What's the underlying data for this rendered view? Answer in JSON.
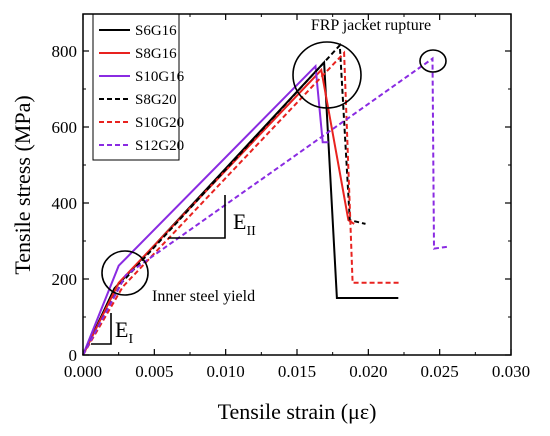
{
  "chart_data": {
    "type": "line",
    "xlabel": "Tensile strain (με)",
    "ylabel": "Tensile stress (MPa)",
    "xlim": [
      0,
      0.03
    ],
    "ylim": [
      0,
      850
    ],
    "xticks": [
      "0.000",
      "0.005",
      "0.010",
      "0.015",
      "0.020",
      "0.025",
      "0.030"
    ],
    "yticks": [
      "0",
      "200",
      "400",
      "600",
      "800"
    ],
    "legend_position": "top-left",
    "series": [
      {
        "name": "S6G16",
        "color": "#000000",
        "dash": "solid",
        "x": [
          0,
          0.0022,
          0.0169,
          0.0178,
          0.0179,
          0.0221
        ],
        "y": [
          0,
          175,
          770,
          150,
          150,
          150
        ]
      },
      {
        "name": "S8G16",
        "color": "#e8221f",
        "dash": "solid",
        "x": [
          0,
          0.0025,
          0.0167,
          0.0186,
          0.019
        ],
        "y": [
          0,
          190,
          750,
          355,
          345
        ]
      },
      {
        "name": "S10G16",
        "color": "#8a2be2",
        "dash": "solid",
        "x": [
          0,
          0.0025,
          0.0163,
          0.0168,
          0.0172
        ],
        "y": [
          0,
          235,
          760,
          560,
          560
        ]
      },
      {
        "name": "S8G20",
        "color": "#000000",
        "dash": "dashed",
        "x": [
          0,
          0.0027,
          0.018,
          0.0187,
          0.0198
        ],
        "y": [
          0,
          190,
          815,
          355,
          345
        ]
      },
      {
        "name": "S10G20",
        "color": "#e8221f",
        "dash": "dashed",
        "x": [
          0,
          0.0028,
          0.0183,
          0.0189,
          0.0222
        ],
        "y": [
          0,
          180,
          795,
          190,
          190
        ]
      },
      {
        "name": "S12G20",
        "color": "#8a2be2",
        "dash": "dashed",
        "x": [
          0,
          0.003,
          0.0245,
          0.0246,
          0.0256
        ],
        "y": [
          0,
          210,
          780,
          280,
          285
        ]
      }
    ],
    "annotations": {
      "rupture": "FRP jacket rupture",
      "yield": "Inner steel yield",
      "e1_main": "E",
      "e1_sub": "I",
      "e2_main": "E",
      "e2_sub": "II"
    }
  }
}
